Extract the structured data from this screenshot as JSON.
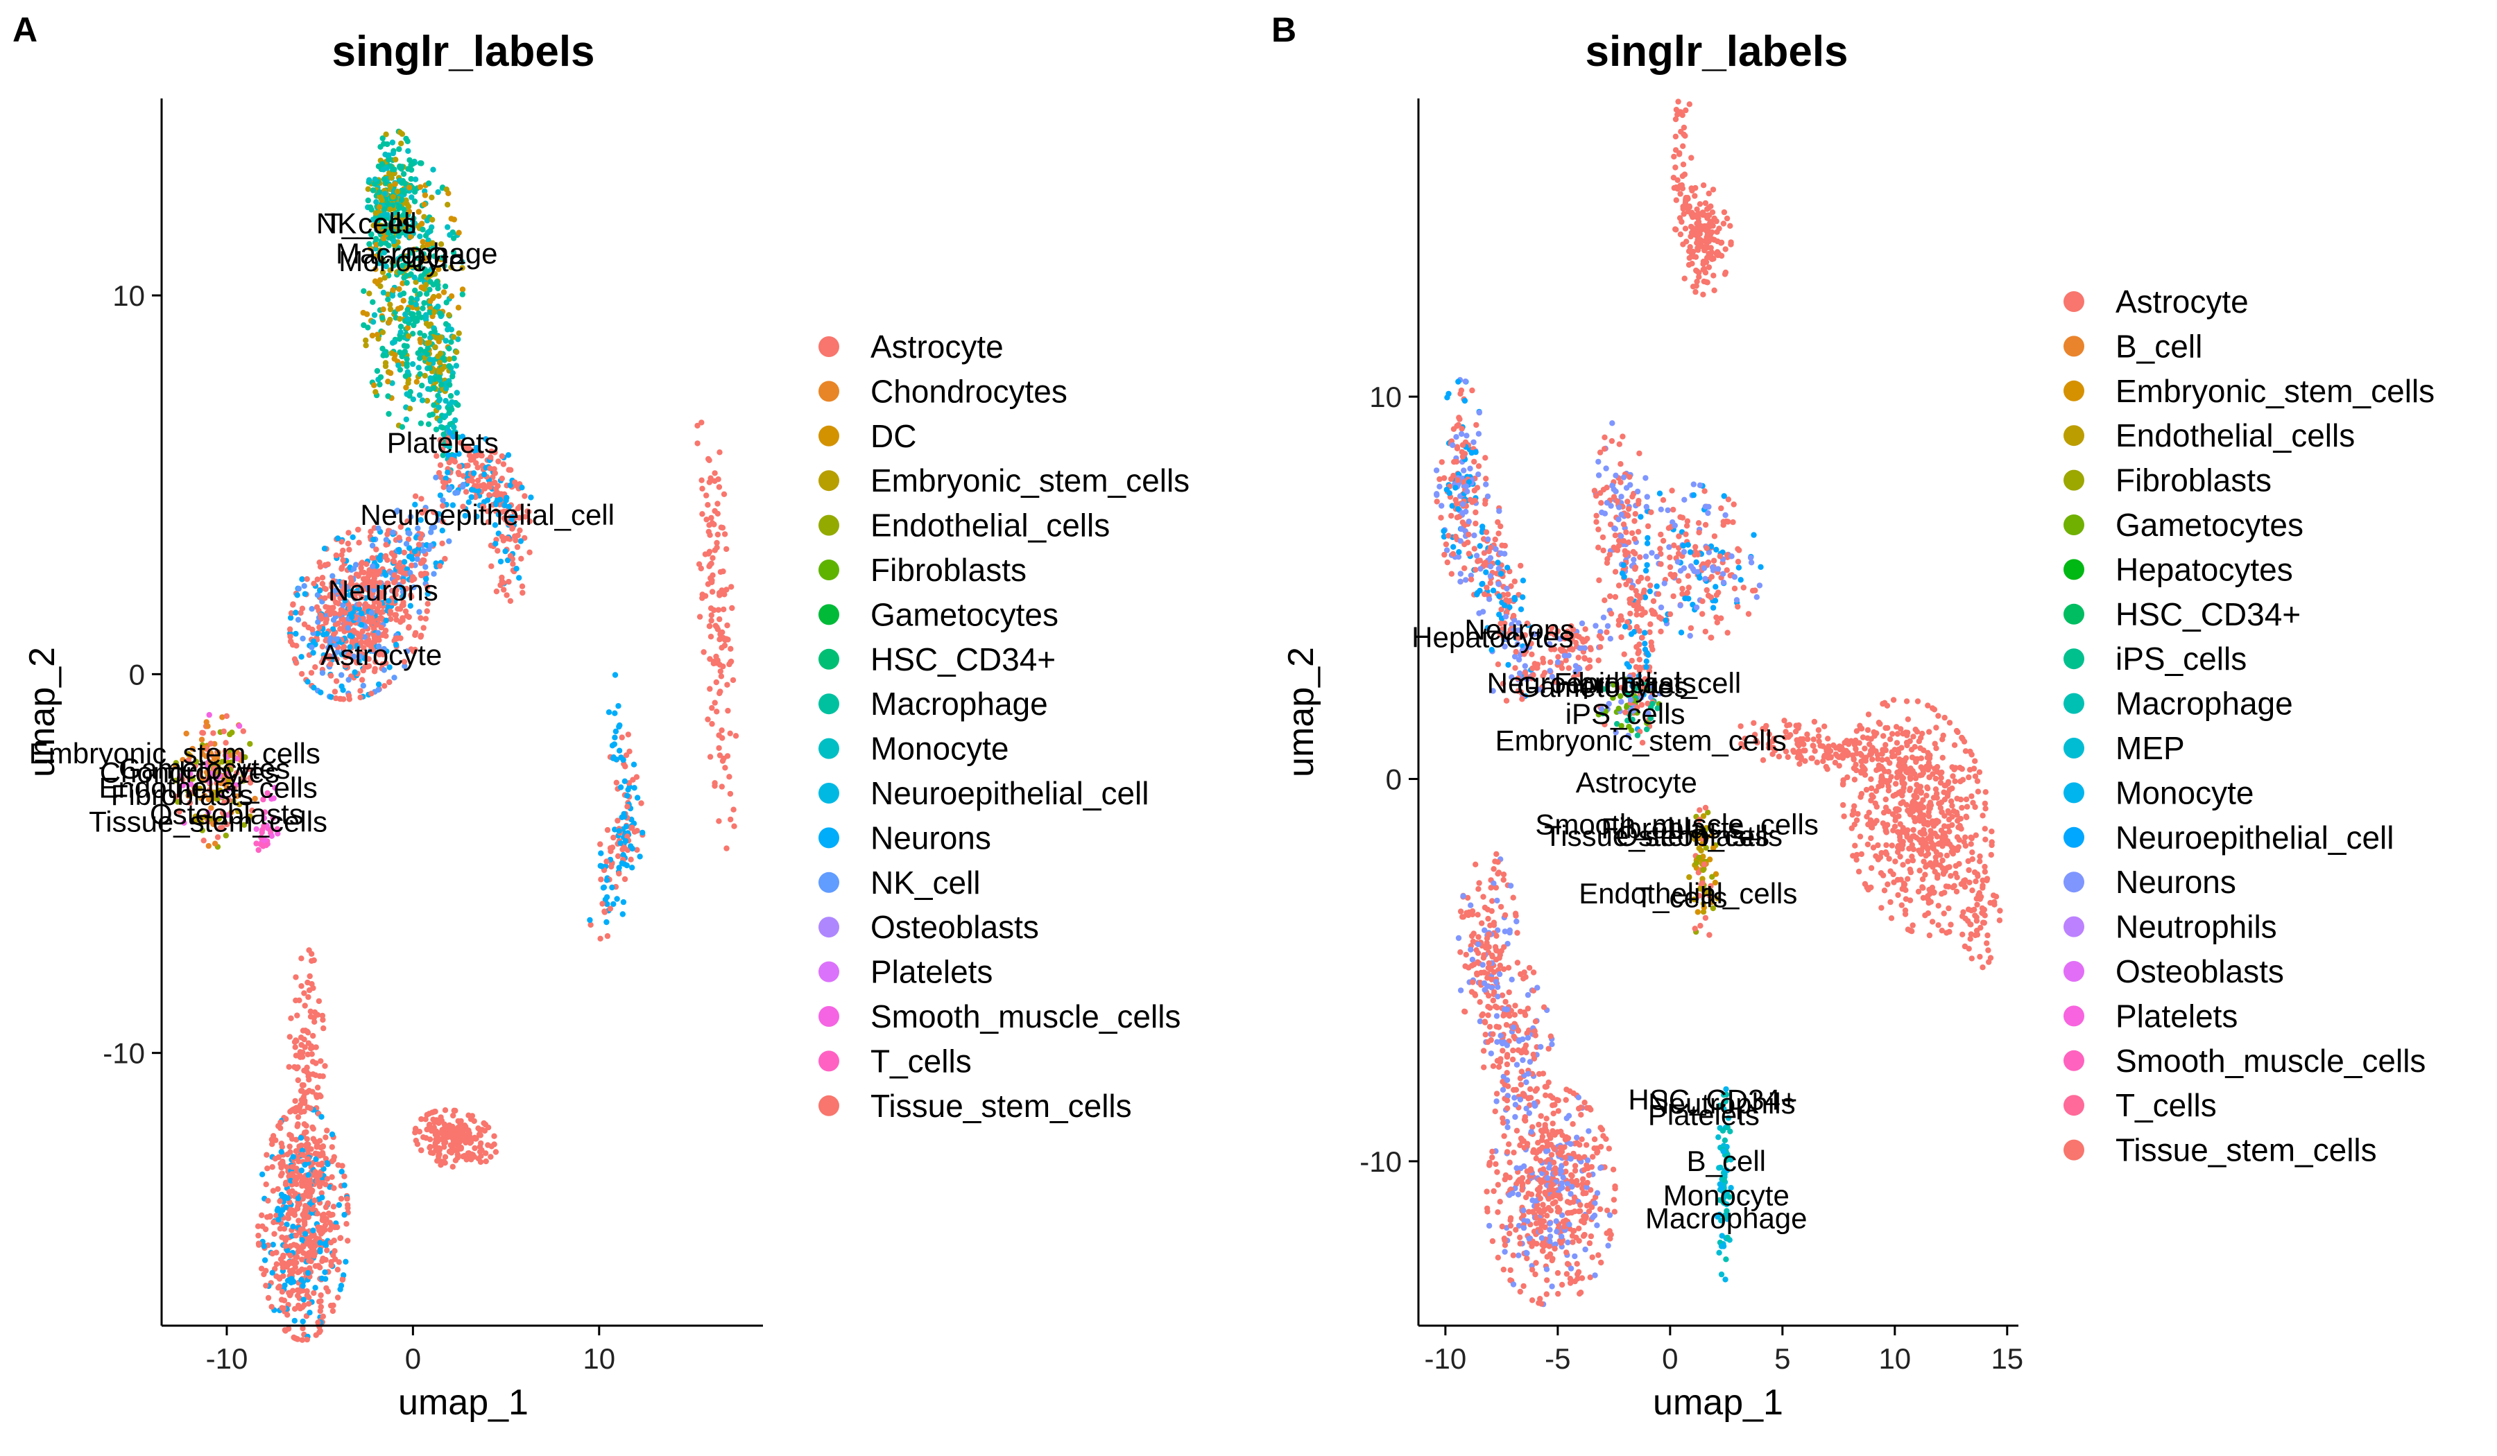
{
  "chart_data": [
    {
      "type": "scatter",
      "panel": "A",
      "title": "singlr_labels",
      "xlabel": "umap_1",
      "ylabel": "umap_2",
      "xlim": [
        -13.5,
        18.8
      ],
      "ylim": [
        -17.2,
        15.2
      ],
      "xticks": [
        -10,
        0,
        10
      ],
      "yticks": [
        -10,
        0,
        10
      ],
      "grid": false,
      "legend_position": "right",
      "legend": [
        {
          "name": "Astrocyte",
          "color": "#F8766D"
        },
        {
          "name": "Chondrocytes",
          "color": "#E88526"
        },
        {
          "name": "DC",
          "color": "#D39200"
        },
        {
          "name": "Embryonic_stem_cells",
          "color": "#B79F00"
        },
        {
          "name": "Endothelial_cells",
          "color": "#93AA00"
        },
        {
          "name": "Fibroblasts",
          "color": "#5EB300"
        },
        {
          "name": "Gametocytes",
          "color": "#00BA38"
        },
        {
          "name": "HSC_CD34+",
          "color": "#00BF74"
        },
        {
          "name": "Macrophage",
          "color": "#00C19F"
        },
        {
          "name": "Monocyte",
          "color": "#00BFC4"
        },
        {
          "name": "Neuroepithelial_cell",
          "color": "#00B9E3"
        },
        {
          "name": "Neurons",
          "color": "#00ADFA"
        },
        {
          "name": "NK_cell",
          "color": "#619CFF"
        },
        {
          "name": "Osteoblasts",
          "color": "#AE87FF"
        },
        {
          "name": "Platelets",
          "color": "#DB72FB"
        },
        {
          "name": "Smooth_muscle_cells",
          "color": "#F564E3"
        },
        {
          "name": "T_cells",
          "color": "#FF61C3"
        },
        {
          "name": "Tissue_stem_cells",
          "color": "#F8766D"
        }
      ],
      "annotations": [
        {
          "text": "NK_cell",
          "x": -2.5,
          "y": 11.9
        },
        {
          "text": "T_cells",
          "x": -2.3,
          "y": 11.9
        },
        {
          "text": "Macrophage",
          "x": 0.2,
          "y": 11.1
        },
        {
          "text": "DC",
          "x": 0.7,
          "y": 11.0
        },
        {
          "text": "Monocyte",
          "x": -0.6,
          "y": 10.9
        },
        {
          "text": "Platelets",
          "x": 1.6,
          "y": 6.1
        },
        {
          "text": "Neuroepithelial_cell",
          "x": 4.0,
          "y": 4.2
        },
        {
          "text": "Neurons",
          "x": -1.6,
          "y": 2.2
        },
        {
          "text": "Astrocyte",
          "x": -1.7,
          "y": 0.5
        },
        {
          "text": "Embryonic_stem_cells",
          "x": -12.8,
          "y": -2.1
        },
        {
          "text": "Gametocytes",
          "x": -11.2,
          "y": -2.5
        },
        {
          "text": "Chondrocytes",
          "x": -12.0,
          "y": -2.6
        },
        {
          "text": "Endothelial_cells",
          "x": -11.0,
          "y": -3.0
        },
        {
          "text": "Fibroblasts",
          "x": -12.4,
          "y": -3.2
        },
        {
          "text": "Osteoblasts",
          "x": -10.0,
          "y": -3.7
        },
        {
          "text": "Tissue_stem_cells",
          "x": -11.0,
          "y": -3.9
        }
      ],
      "clusters": [
        {
          "cx": -1.1,
          "cy": 12.6,
          "sx": 0.6,
          "sy": 0.8,
          "n": 260,
          "rot": -8,
          "colors": [
            "#00C19F",
            "#00BFC4",
            "#B79F00",
            "#00C19F"
          ]
        },
        {
          "cx": 0.0,
          "cy": 10.0,
          "sx": 1.2,
          "sy": 1.6,
          "n": 420,
          "rot": -10,
          "colors": [
            "#00C19F",
            "#00BFC4",
            "#00C19F",
            "#B79F00",
            "#D39200"
          ]
        },
        {
          "cx": 1.3,
          "cy": 8.0,
          "sx": 0.5,
          "sy": 0.7,
          "n": 90,
          "rot": 0,
          "colors": [
            "#00C19F",
            "#00BFC4",
            "#B79F00"
          ]
        },
        {
          "cx": 1.9,
          "cy": 6.6,
          "sx": 0.25,
          "sy": 0.7,
          "n": 50,
          "rot": 0,
          "colors": [
            "#00BFC4",
            "#00C19F"
          ]
        },
        {
          "cx": 3.8,
          "cy": 5.2,
          "sx": 1.2,
          "sy": 0.5,
          "n": 160,
          "rot": -15,
          "colors": [
            "#F8766D",
            "#F8766D",
            "#F8766D",
            "#00ADFA"
          ]
        },
        {
          "cx": 5.2,
          "cy": 3.7,
          "sx": 0.5,
          "sy": 0.9,
          "n": 80,
          "rot": 0,
          "colors": [
            "#F8766D",
            "#F8766D",
            "#00ADFA"
          ]
        },
        {
          "cx": 0.0,
          "cy": 3.4,
          "sx": 1.6,
          "sy": 0.55,
          "n": 150,
          "rot": 28,
          "colors": [
            "#F8766D",
            "#F8766D",
            "#00ADFA",
            "#619CFF"
          ]
        },
        {
          "cx": -2.9,
          "cy": 1.6,
          "sx": 1.7,
          "sy": 1.0,
          "n": 650,
          "rot": 10,
          "colors": [
            "#F8766D",
            "#F8766D",
            "#F8766D",
            "#F8766D",
            "#00ADFA",
            "#619CFF"
          ]
        },
        {
          "cx": -10.6,
          "cy": -2.8,
          "sx": 1.0,
          "sy": 0.8,
          "n": 200,
          "rot": 0,
          "colors": [
            "#F8766D",
            "#B79F00",
            "#93AA00",
            "#F8766D",
            "#E88526",
            "#F564E3"
          ]
        },
        {
          "cx": -7.9,
          "cy": -3.9,
          "sx": 0.3,
          "sy": 0.6,
          "n": 30,
          "rot": 0,
          "colors": [
            "#F564E3",
            "#FF61C3"
          ]
        },
        {
          "cx": 16.3,
          "cy": 1.5,
          "sx": 0.4,
          "sy": 2.8,
          "n": 140,
          "rot": 6,
          "colors": [
            "#F8766D"
          ]
        },
        {
          "cx": 11.3,
          "cy": -2.4,
          "sx": 0.3,
          "sy": 1.1,
          "n": 50,
          "rot": 10,
          "colors": [
            "#F8766D",
            "#00ADFA"
          ]
        },
        {
          "cx": 10.9,
          "cy": -5.0,
          "sx": 0.5,
          "sy": 1.0,
          "n": 90,
          "rot": -30,
          "colors": [
            "#F8766D",
            "#00ADFA"
          ]
        },
        {
          "cx": -5.7,
          "cy": -11.0,
          "sx": 0.45,
          "sy": 1.7,
          "n": 150,
          "rot": 0,
          "colors": [
            "#F8766D"
          ]
        },
        {
          "cx": -5.9,
          "cy": -14.5,
          "sx": 1.1,
          "sy": 1.4,
          "n": 600,
          "rot": 0,
          "colors": [
            "#F8766D",
            "#F8766D",
            "#F8766D",
            "#00ADFA"
          ]
        },
        {
          "cx": 2.3,
          "cy": -12.3,
          "sx": 1.0,
          "sy": 0.35,
          "n": 200,
          "rot": -5,
          "colors": [
            "#F8766D"
          ]
        }
      ]
    },
    {
      "type": "scatter",
      "panel": "B",
      "title": "singlr_labels",
      "xlabel": "umap_1",
      "ylabel": "umap_2",
      "xlim": [
        -11.2,
        15.5
      ],
      "ylim": [
        -14.3,
        17.8
      ],
      "xticks": [
        -10,
        -5,
        0,
        5,
        10,
        15
      ],
      "yticks": [
        -10,
        0,
        10
      ],
      "grid": false,
      "legend_position": "right",
      "legend": [
        {
          "name": "Astrocyte",
          "color": "#F8766D"
        },
        {
          "name": "B_cell",
          "color": "#E9842C"
        },
        {
          "name": "Embryonic_stem_cells",
          "color": "#D69100"
        },
        {
          "name": "Endothelial_cells",
          "color": "#BC9D00"
        },
        {
          "name": "Fibroblasts",
          "color": "#9CA700"
        },
        {
          "name": "Gametocytes",
          "color": "#6FB000"
        },
        {
          "name": "Hepatocytes",
          "color": "#00B813"
        },
        {
          "name": "HSC_CD34+",
          "color": "#00BD61"
        },
        {
          "name": "iPS_cells",
          "color": "#00C08E"
        },
        {
          "name": "Macrophage",
          "color": "#00C0B4"
        },
        {
          "name": "MEP",
          "color": "#00BDD4"
        },
        {
          "name": "Monocyte",
          "color": "#00B5EE"
        },
        {
          "name": "Neuroepithelial_cell",
          "color": "#00A7FF"
        },
        {
          "name": "Neurons",
          "color": "#7F96FF"
        },
        {
          "name": "Neutrophils",
          "color": "#BC81FF"
        },
        {
          "name": "Osteoblasts",
          "color": "#E26EF7"
        },
        {
          "name": "Platelets",
          "color": "#F863DF"
        },
        {
          "name": "Smooth_muscle_cells",
          "color": "#FF62BF"
        },
        {
          "name": "T_cells",
          "color": "#FF6A9A"
        },
        {
          "name": "Tissue_stem_cells",
          "color": "#F8766D"
        }
      ],
      "annotations": [
        {
          "text": "Neurons",
          "x": -6.7,
          "y": 3.9
        },
        {
          "text": "Hepatocytes",
          "x": -7.9,
          "y": 3.7
        },
        {
          "text": "Neuroepithelial_cell",
          "x": -2.5,
          "y": 2.5
        },
        {
          "text": "Gametocytes",
          "x": -3.0,
          "y": 2.4
        },
        {
          "text": "Fibroblasts",
          "x": -2.0,
          "y": 2.5
        },
        {
          "text": "iPS_cells",
          "x": -2.0,
          "y": 1.7
        },
        {
          "text": "Embryonic_stem_cells",
          "x": -1.3,
          "y": 1.0
        },
        {
          "text": "Astrocyte",
          "x": -1.5,
          "y": -0.1
        },
        {
          "text": "Smooth_muscle_cells",
          "x": 0.3,
          "y": -1.2
        },
        {
          "text": "Fibroblasts",
          "x": 0.1,
          "y": -1.3
        },
        {
          "text": "Tissue_stem_cells",
          "x": -0.3,
          "y": -1.5
        },
        {
          "text": "Osteoblasts",
          "x": 1.0,
          "y": -1.5
        },
        {
          "text": "Endothelial_cells",
          "x": 0.8,
          "y": -3.0
        },
        {
          "text": "T_cells",
          "x": 0.5,
          "y": -3.1
        },
        {
          "text": "HSC_CD34+",
          "x": 1.9,
          "y": -8.4
        },
        {
          "text": "Neutrophils",
          "x": 2.3,
          "y": -8.5
        },
        {
          "text": "Platelets",
          "x": 1.5,
          "y": -8.8
        },
        {
          "text": "B_cell",
          "x": 2.5,
          "y": -10.0
        },
        {
          "text": "Monocyte",
          "x": 2.5,
          "y": -10.9
        },
        {
          "text": "Macrophage",
          "x": 2.5,
          "y": -11.5
        }
      ],
      "clusters": [
        {
          "cx": 0.5,
          "cy": 16.0,
          "sx": 0.25,
          "sy": 1.0,
          "n": 50,
          "rot": 0,
          "colors": [
            "#F8766D"
          ]
        },
        {
          "cx": 1.5,
          "cy": 14.1,
          "sx": 0.55,
          "sy": 0.65,
          "n": 150,
          "rot": 0,
          "colors": [
            "#F8766D"
          ]
        },
        {
          "cx": -9.3,
          "cy": 7.8,
          "sx": 0.5,
          "sy": 1.2,
          "n": 170,
          "rot": 0,
          "colors": [
            "#F8766D",
            "#F8766D",
            "#7F96FF",
            "#00A7FF"
          ]
        },
        {
          "cx": -7.6,
          "cy": 5.0,
          "sx": 0.5,
          "sy": 1.4,
          "n": 170,
          "rot": 25,
          "colors": [
            "#F8766D",
            "#7F96FF",
            "#00A7FF",
            "#F8766D"
          ]
        },
        {
          "cx": -4.8,
          "cy": 3.3,
          "sx": 1.5,
          "sy": 0.35,
          "n": 120,
          "rot": 18,
          "colors": [
            "#F8766D",
            "#7F96FF",
            "#F8766D"
          ]
        },
        {
          "cx": -2.2,
          "cy": 6.8,
          "sx": 0.55,
          "sy": 1.2,
          "n": 130,
          "rot": 0,
          "colors": [
            "#F8766D",
            "#F8766D",
            "#7F96FF"
          ]
        },
        {
          "cx": 1.2,
          "cy": 5.7,
          "sx": 1.3,
          "sy": 0.9,
          "n": 220,
          "rot": -10,
          "colors": [
            "#F8766D",
            "#F8766D",
            "#F8766D",
            "#7F96FF",
            "#00A7FF"
          ]
        },
        {
          "cx": -1.3,
          "cy": 3.8,
          "sx": 0.45,
          "sy": 1.3,
          "n": 100,
          "rot": 0,
          "colors": [
            "#F8766D",
            "#F8766D",
            "#00A7FF"
          ]
        },
        {
          "cx": -1.7,
          "cy": 1.9,
          "sx": 0.7,
          "sy": 0.35,
          "n": 80,
          "rot": 0,
          "colors": [
            "#F8766D",
            "#00C08E",
            "#7F96FF",
            "#6FB000"
          ]
        },
        {
          "cx": 7.0,
          "cy": 0.8,
          "sx": 2.0,
          "sy": 0.3,
          "n": 160,
          "rot": -4,
          "colors": [
            "#F8766D"
          ]
        },
        {
          "cx": 11.0,
          "cy": -1.0,
          "sx": 1.6,
          "sy": 1.3,
          "n": 600,
          "rot": -35,
          "colors": [
            "#F8766D"
          ]
        },
        {
          "cx": 13.8,
          "cy": -3.4,
          "sx": 0.4,
          "sy": 0.7,
          "n": 50,
          "rot": 0,
          "colors": [
            "#F8766D"
          ]
        },
        {
          "cx": 1.5,
          "cy": -2.5,
          "sx": 0.3,
          "sy": 0.8,
          "n": 80,
          "rot": 0,
          "colors": [
            "#D69100",
            "#BC9D00",
            "#9CA700",
            "#F8766D"
          ]
        },
        {
          "cx": -8.1,
          "cy": -4.5,
          "sx": 0.6,
          "sy": 1.2,
          "n": 170,
          "rot": 0,
          "colors": [
            "#F8766D",
            "#F8766D",
            "#7F96FF"
          ]
        },
        {
          "cx": -6.8,
          "cy": -7.0,
          "sx": 0.7,
          "sy": 1.0,
          "n": 160,
          "rot": 0,
          "colors": [
            "#F8766D",
            "#F8766D",
            "#7F96FF"
          ]
        },
        {
          "cx": -5.3,
          "cy": -10.9,
          "sx": 1.3,
          "sy": 1.3,
          "n": 550,
          "rot": 0,
          "colors": [
            "#F8766D",
            "#F8766D",
            "#F8766D",
            "#7F96FF"
          ]
        },
        {
          "cx": 2.4,
          "cy": -10.5,
          "sx": 0.14,
          "sy": 1.2,
          "n": 80,
          "rot": 0,
          "colors": [
            "#00C0B4",
            "#00BDD4",
            "#00B5EE"
          ]
        }
      ]
    }
  ]
}
